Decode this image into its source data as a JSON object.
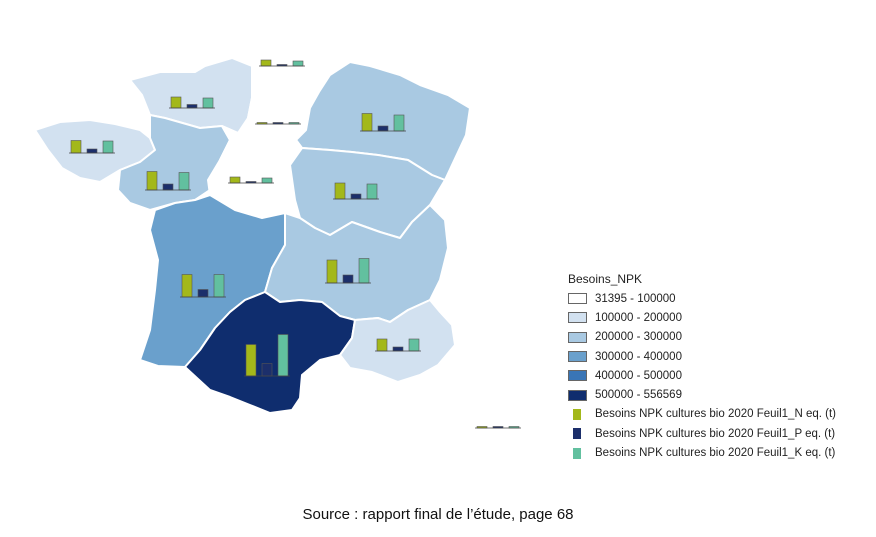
{
  "legend": {
    "title": "Besoins_NPK",
    "classes": [
      {
        "label": "31395 - 100000",
        "color": "#ffffff"
      },
      {
        "label": "100000 - 200000",
        "color": "#d2e1f0"
      },
      {
        "label": "200000 - 300000",
        "color": "#a9c9e2"
      },
      {
        "label": "300000 - 400000",
        "color": "#6aa0cc"
      },
      {
        "label": "400000 - 500000",
        "color": "#3975b6"
      },
      {
        "label": "500000 - 556569",
        "color": "#0f2d6e"
      }
    ],
    "bar_series": [
      {
        "label": "Besoins NPK cultures bio 2020 Feuil1_N eq. (t)",
        "color": "#a3b81a"
      },
      {
        "label": "Besoins NPK cultures bio 2020 Feuil1_P eq. (t)",
        "color": "#1c2f6b"
      },
      {
        "label": "Besoins NPK cultures bio 2020 Feuil1_K eq. (t)",
        "color": "#62c09f"
      }
    ]
  },
  "regions": [
    {
      "name": "hauts-de-france",
      "class_index": 0,
      "n": 12,
      "p": 3,
      "k": 10
    },
    {
      "name": "normandie",
      "class_index": 1,
      "n": 22,
      "p": 7,
      "k": 20
    },
    {
      "name": "ile-de-france",
      "class_index": 0,
      "n": 3,
      "p": 1,
      "k": 3
    },
    {
      "name": "grand-est",
      "class_index": 2,
      "n": 35,
      "p": 10,
      "k": 32
    },
    {
      "name": "bretagne",
      "class_index": 1,
      "n": 25,
      "p": 8,
      "k": 24
    },
    {
      "name": "pays-de-la-loire",
      "class_index": 2,
      "n": 37,
      "p": 12,
      "k": 35
    },
    {
      "name": "centre-val-de-loire",
      "class_index": 0,
      "n": 12,
      "p": 3,
      "k": 10
    },
    {
      "name": "bourgogne-franche-comte",
      "class_index": 2,
      "n": 32,
      "p": 10,
      "k": 30
    },
    {
      "name": "nouvelle-aquitaine",
      "class_index": 3,
      "n": 45,
      "p": 15,
      "k": 45
    },
    {
      "name": "auvergne-rhone-alpes",
      "class_index": 2,
      "n": 46,
      "p": 16,
      "k": 49
    },
    {
      "name": "occitanie",
      "class_index": 5,
      "n": 63,
      "p": 25,
      "k": 83
    },
    {
      "name": "provence-alpes-cote-d-azur",
      "class_index": 1,
      "n": 24,
      "p": 8,
      "k": 24
    },
    {
      "name": "corse",
      "class_index": 0,
      "n": 2,
      "p": 1,
      "k": 2
    }
  ],
  "source": "Source : rapport final de l’étude, page 68"
}
